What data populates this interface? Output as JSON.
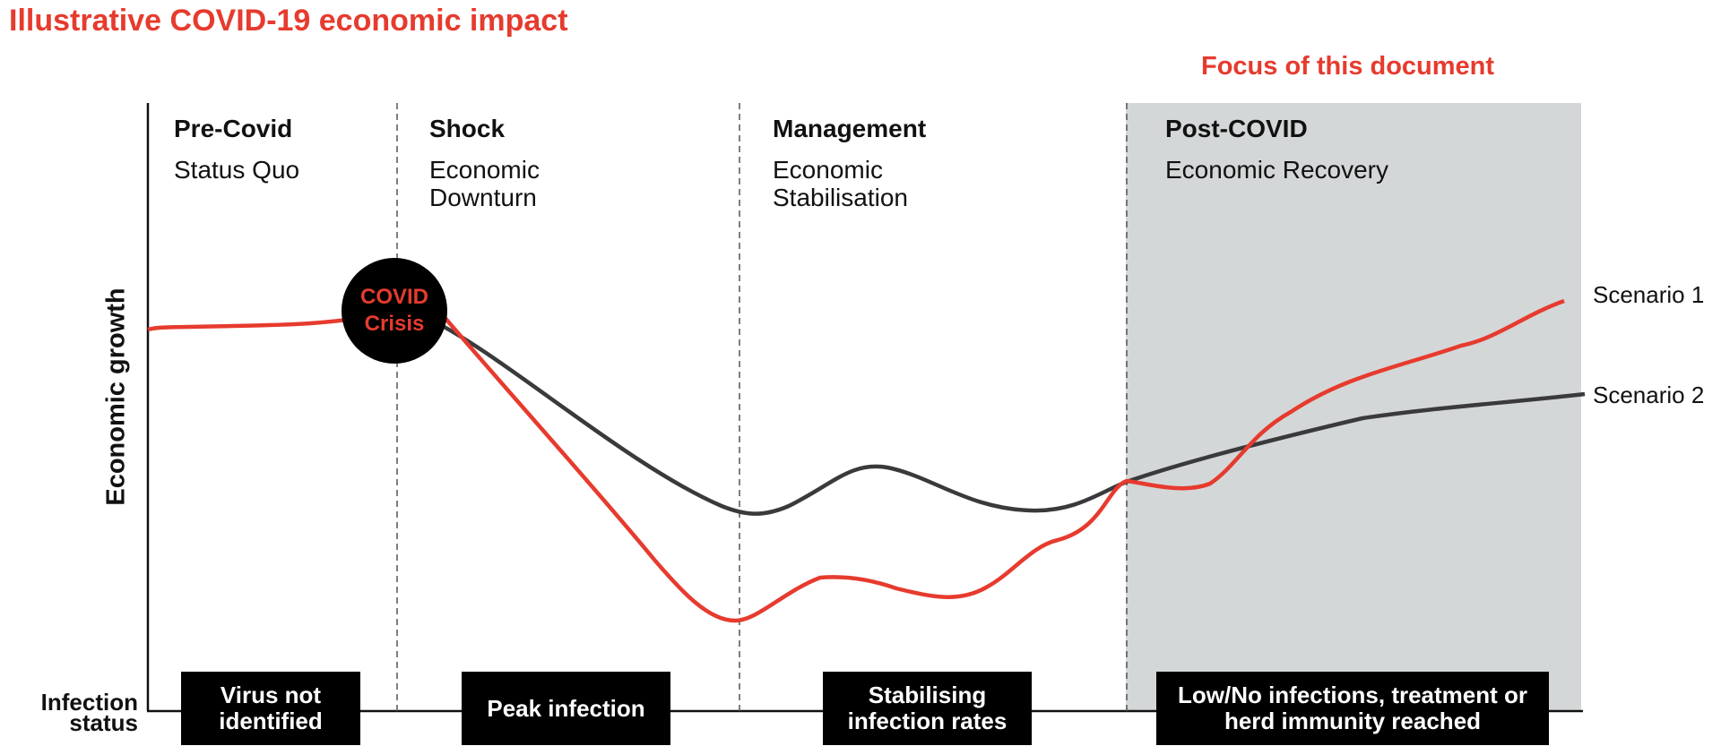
{
  "title": "Illustrative COVID-19 economic impact",
  "focus_label": "Focus of this document",
  "y_axis_label": "Economic growth",
  "infection_status_label": "Infection status",
  "phases": [
    {
      "title": "Pre-Covid",
      "subtitle": "Status Quo",
      "infection_status": "Virus not identified"
    },
    {
      "title": "Shock",
      "subtitle": "Economic Downturn",
      "infection_status": "Peak infection"
    },
    {
      "title": "Management",
      "subtitle": "Economic Stabilisation",
      "infection_status": "Stabilising infection rates"
    },
    {
      "title": "Post-COVID",
      "subtitle": "Economic Recovery",
      "infection_status": "Low/No infections, treatment or herd immunity reached"
    }
  ],
  "crisis_marker": "COVID Crisis",
  "scenarios": [
    {
      "name": "Scenario 1",
      "color": "#e63b2e"
    },
    {
      "name": "Scenario 2",
      "color": "#3a3a3c"
    }
  ],
  "colors": {
    "accent": "#e63b2e",
    "dark_line": "#3a3a3c",
    "focus_shading": "#d4d7d8",
    "status_box": "#000000"
  }
}
